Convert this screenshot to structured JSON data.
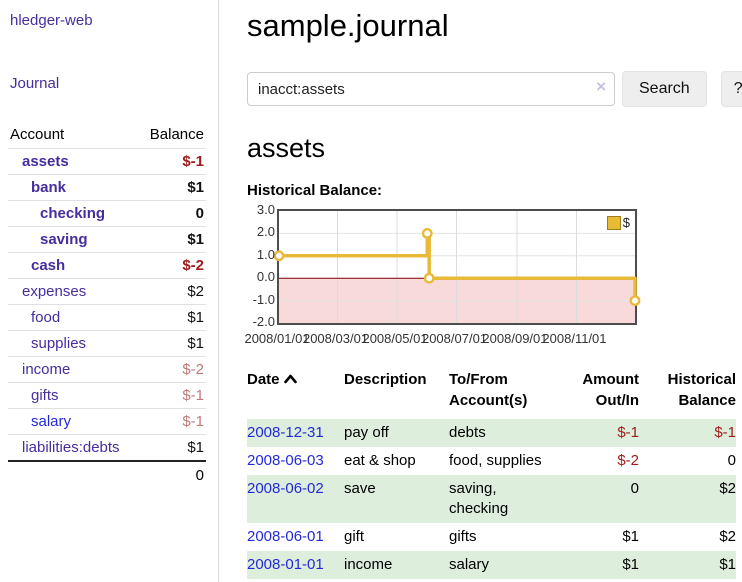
{
  "colors": {
    "accent_purple": "#472d9e",
    "link_blue": "#2429d8",
    "negative_strong": "#a01c1c",
    "negative_muted": "#bf7b7b",
    "row_green": "#ddeedd",
    "gold_line": "#e8b93a",
    "negative_region_pink": "#f9dada",
    "zero_line_red": "#7d0000",
    "button_gray": "#eeeeee"
  },
  "sidebar": {
    "app_title": "hledger-web",
    "journal_link": "Journal",
    "accounts_table": {
      "headers": {
        "account": "Account",
        "balance": "Balance"
      },
      "rows": [
        {
          "name": "assets",
          "balance": "$-1",
          "depth": 1,
          "in_query": true
        },
        {
          "name": "bank",
          "balance": "$1",
          "depth": 2,
          "in_query": true
        },
        {
          "name": "checking",
          "balance": "0",
          "depth": 3,
          "in_query": true
        },
        {
          "name": "saving",
          "balance": "$1",
          "depth": 3,
          "in_query": true
        },
        {
          "name": "cash",
          "balance": "$-2",
          "depth": 2,
          "in_query": true
        },
        {
          "name": "expenses",
          "balance": "$2",
          "depth": 1
        },
        {
          "name": "food",
          "balance": "$1",
          "depth": 2
        },
        {
          "name": "supplies",
          "balance": "$1",
          "depth": 2
        },
        {
          "name": "income",
          "balance": "$-2",
          "depth": 1
        },
        {
          "name": "gifts",
          "balance": "$-1",
          "depth": 2
        },
        {
          "name": "salary",
          "balance": "$-1",
          "depth": 2,
          "unvisited": true
        },
        {
          "name": "liabilities:debts",
          "balance": "$1",
          "depth": 1
        }
      ],
      "total": "0"
    }
  },
  "header": {
    "title": "sample.journal"
  },
  "search": {
    "value": "inacct:assets",
    "clear_icon": "×",
    "search_label": "Search",
    "help_label": "?"
  },
  "account_page": {
    "title": "assets",
    "chart_label": "Historical Balance:"
  },
  "chart_data": {
    "type": "line",
    "title": "Historical Balance",
    "legend": [
      "$"
    ],
    "step": "after",
    "xlim_days": [
      0,
      365
    ],
    "x_ticks": [
      {
        "day": 0,
        "label": "2008/01/01"
      },
      {
        "day": 60,
        "label": "2008/03/01"
      },
      {
        "day": 121,
        "label": "2008/05/01"
      },
      {
        "day": 182,
        "label": "2008/07/01"
      },
      {
        "day": 244,
        "label": "2008/09/01"
      },
      {
        "day": 305,
        "label": "2008/11/01"
      }
    ],
    "ylim": [
      -2,
      3
    ],
    "y_ticks": [
      3.0,
      2.0,
      1.0,
      0.0,
      -1.0,
      -2.0
    ],
    "series": [
      {
        "name": "$",
        "points": [
          {
            "date": "2008-01-01",
            "day": 0,
            "value": 1
          },
          {
            "date": "2008-06-01",
            "day": 152,
            "value": 2
          },
          {
            "date": "2008-06-03",
            "day": 154,
            "value": 0
          },
          {
            "date": "2008-12-31",
            "day": 365,
            "value": -1
          }
        ]
      }
    ]
  },
  "register_table": {
    "headers": [
      {
        "label": "Date",
        "sort": "asc"
      },
      {
        "label": "Description"
      },
      {
        "label": "To/From Account(s)"
      },
      {
        "label": "Amount Out/In",
        "align": "right"
      },
      {
        "label": "Historical Balance",
        "align": "right"
      }
    ],
    "rows": [
      {
        "date": "2008-12-31",
        "description": "pay off",
        "accounts": "debts",
        "amount": "$-1",
        "balance": "$-1"
      },
      {
        "date": "2008-06-03",
        "description": "eat & shop",
        "accounts": "food, supplies",
        "amount": "$-2",
        "balance": "0"
      },
      {
        "date": "2008-06-02",
        "description": "save",
        "accounts": "saving, checking",
        "amount": "0",
        "balance": "$2"
      },
      {
        "date": "2008-06-01",
        "description": "gift",
        "accounts": "gifts",
        "amount": "$1",
        "balance": "$2"
      },
      {
        "date": "2008-01-01",
        "description": "income",
        "accounts": "salary",
        "amount": "$1",
        "balance": "$1"
      }
    ]
  }
}
